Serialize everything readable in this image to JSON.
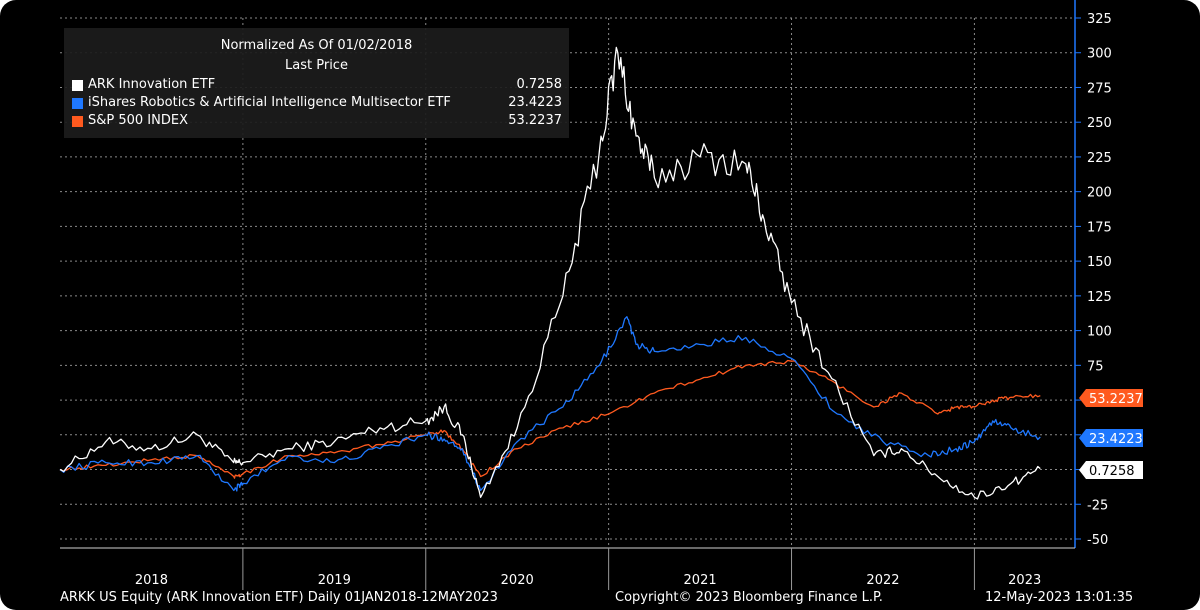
{
  "legend": {
    "title": "Normalized As Of 01/02/2018",
    "subtitle": "Last Price"
  },
  "footer": {
    "left": "ARKK US Equity (ARK Innovation ETF)  Daily 01JAN2018-12MAY2023",
    "center": "Copyright© 2023 Bloomberg Finance L.P.",
    "right": "12-May-2023 13:01:35"
  },
  "chart_data": {
    "type": "line",
    "ylim": [
      -50,
      325
    ],
    "yticks": [
      -50,
      -25,
      0,
      25,
      50,
      75,
      100,
      125,
      150,
      175,
      200,
      225,
      250,
      275,
      300,
      325
    ],
    "ytick_labels": [
      "-50",
      "-25",
      "",
      "",
      "",
      "75",
      "100",
      "125",
      "150",
      "175",
      "200",
      "225",
      "250",
      "275",
      "300",
      "325"
    ],
    "y_axis_side": "right",
    "x_categories": [
      "2018",
      "2019",
      "2020",
      "2021",
      "2022",
      "2023"
    ],
    "grid": true,
    "legend_position": "top-left",
    "series": [
      {
        "name": "ARK Innovation ETF",
        "last": "0.7258",
        "color": "#ffffff",
        "x": [
          2018.0,
          2018.25,
          2018.5,
          2018.75,
          2018.95,
          2019.0,
          2019.25,
          2019.5,
          2019.75,
          2020.0,
          2020.1,
          2020.2,
          2020.3,
          2020.5,
          2020.75,
          2020.95,
          2021.05,
          2021.15,
          2021.25,
          2021.5,
          2021.75,
          2021.85,
          2022.0,
          2022.2,
          2022.45,
          2022.6,
          2022.8,
          2023.0,
          2023.2,
          2023.36
        ],
        "y": [
          0,
          20,
          15,
          25,
          5,
          5,
          15,
          20,
          30,
          35,
          45,
          25,
          -20,
          30,
          125,
          230,
          300,
          240,
          210,
          225,
          220,
          180,
          120,
          70,
          10,
          15,
          -5,
          -20,
          -10,
          0.7
        ]
      },
      {
        "name": "iShares Robotics & Artificial Intelligence Multisector ETF",
        "last": "23.4223",
        "color": "#1f78ff",
        "x": [
          2018.0,
          2018.25,
          2018.5,
          2018.75,
          2018.95,
          2019.0,
          2019.25,
          2019.5,
          2019.75,
          2020.0,
          2020.1,
          2020.2,
          2020.3,
          2020.5,
          2020.75,
          2020.95,
          2021.1,
          2021.15,
          2021.25,
          2021.5,
          2021.75,
          2022.0,
          2022.25,
          2022.5,
          2022.75,
          2022.9,
          2023.0,
          2023.1,
          2023.2,
          2023.36
        ],
        "y": [
          0,
          5,
          5,
          10,
          -15,
          -10,
          10,
          5,
          15,
          25,
          22,
          15,
          -15,
          20,
          45,
          75,
          110,
          90,
          85,
          90,
          95,
          80,
          40,
          20,
          10,
          15,
          20,
          35,
          30,
          23.4
        ]
      },
      {
        "name": "S&P 500 INDEX",
        "last": "53.2237",
        "color": "#ff5a1f",
        "x": [
          2018.0,
          2018.25,
          2018.5,
          2018.75,
          2018.95,
          2019.0,
          2019.25,
          2019.5,
          2019.75,
          2020.0,
          2020.1,
          2020.2,
          2020.3,
          2020.5,
          2020.75,
          2021.0,
          2021.25,
          2021.5,
          2021.75,
          2022.0,
          2022.2,
          2022.45,
          2022.6,
          2022.8,
          2022.9,
          2023.0,
          2023.1,
          2023.2,
          2023.36
        ],
        "y": [
          0,
          3,
          7,
          10,
          -5,
          -3,
          10,
          12,
          18,
          25,
          28,
          15,
          -5,
          15,
          30,
          40,
          55,
          65,
          75,
          78,
          65,
          45,
          55,
          40,
          45,
          45,
          50,
          52,
          53.2
        ]
      }
    ]
  }
}
